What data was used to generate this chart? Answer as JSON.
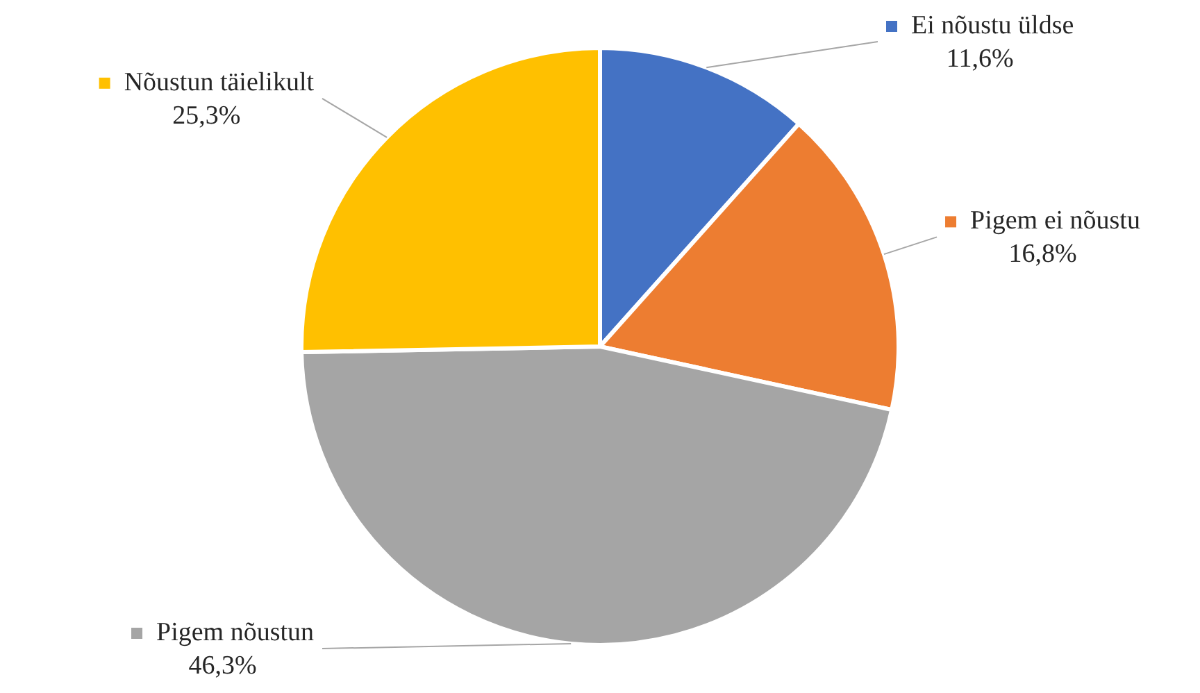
{
  "chart_data": {
    "type": "pie",
    "legend": "right",
    "categories": [
      "Ei nõustu üldse",
      "Pigem ei nõustu",
      "Pigem nõustun",
      "Nõustun täielikult"
    ],
    "values": [
      11.6,
      16.8,
      46.3,
      25.3
    ],
    "colors": [
      "#4472c4",
      "#ed7d31",
      "#a5a5a5",
      "#ffc000"
    ],
    "value_labels": [
      "11,6%",
      "16,8%",
      "46,3%",
      "25,3%"
    ]
  }
}
